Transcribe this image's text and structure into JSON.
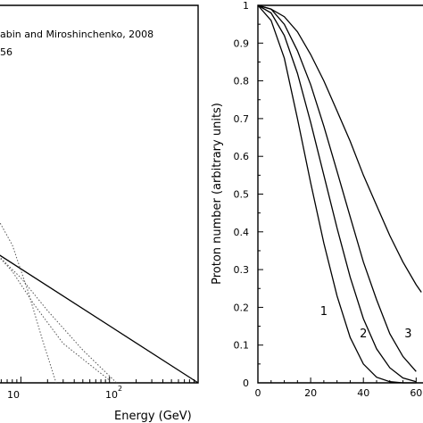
{
  "chart_data": [
    {
      "type": "line",
      "title": "",
      "legend": [
        "abin and Miroshinchenko, 2008",
        "56"
      ],
      "xlabel": "Energy (GeV)",
      "ylabel": "",
      "x_scale": "log",
      "xtick_labels": [
        "10",
        "10",
        "2"
      ],
      "series": [
        {
          "style": "solid",
          "x": [
            5,
            1000
          ],
          "y": [
            1.0,
            0.0
          ]
        },
        {
          "style": "dotted",
          "x": [
            5,
            8,
            14,
            30,
            100
          ],
          "y": [
            1.0,
            0.85,
            0.6,
            0.3,
            0.02
          ]
        },
        {
          "style": "dotted",
          "x": [
            5,
            10,
            20,
            50,
            120
          ],
          "y": [
            1.0,
            0.8,
            0.55,
            0.25,
            0.0
          ]
        },
        {
          "style": "dotted",
          "x": [
            5,
            8,
            12,
            18,
            25
          ],
          "y": [
            1.3,
            1.05,
            0.7,
            0.3,
            0.0
          ]
        }
      ]
    },
    {
      "type": "line",
      "title": "",
      "xlabel": "",
      "ylabel": "Proton number (arbitrary units)",
      "xlim": [
        0,
        62
      ],
      "ylim": [
        0,
        1
      ],
      "xticks": [
        0,
        20,
        40,
        60
      ],
      "xtick_labels": [
        "0",
        "20",
        "40",
        "60"
      ],
      "yticks": [
        0,
        0.1,
        0.2,
        0.3,
        0.4,
        0.5,
        0.6,
        0.7,
        0.8,
        0.9,
        1
      ],
      "ytick_labels": [
        "0",
        "0.1",
        "0.2",
        "0.3",
        "0.4",
        "0.5",
        "0.6",
        "0.7",
        "0.8",
        "0.9",
        "1"
      ],
      "grid": false,
      "series": [
        {
          "name": "1",
          "x": [
            0,
            5,
            10,
            15,
            20,
            25,
            30,
            35,
            40,
            45,
            50,
            55,
            60
          ],
          "y": [
            1.0,
            0.96,
            0.86,
            0.7,
            0.53,
            0.37,
            0.23,
            0.12,
            0.05,
            0.015,
            0.003,
            0.0,
            0.0
          ]
        },
        {
          "name": "2",
          "x": [
            0,
            5,
            10,
            15,
            20,
            25,
            30,
            35,
            40,
            45,
            50,
            55,
            60
          ],
          "y": [
            1.0,
            0.98,
            0.92,
            0.82,
            0.69,
            0.55,
            0.41,
            0.28,
            0.17,
            0.09,
            0.04,
            0.013,
            0.003
          ]
        },
        {
          "name": "3",
          "x": [
            0,
            5,
            10,
            15,
            20,
            25,
            30,
            35,
            40,
            45,
            50,
            55,
            60
          ],
          "y": [
            1.0,
            0.99,
            0.95,
            0.88,
            0.79,
            0.68,
            0.56,
            0.44,
            0.32,
            0.22,
            0.13,
            0.07,
            0.03
          ]
        },
        {
          "name": "",
          "x": [
            0,
            5,
            10,
            15,
            20,
            25,
            30,
            35,
            40,
            45,
            50,
            55,
            60,
            62
          ],
          "y": [
            1.0,
            0.99,
            0.97,
            0.93,
            0.87,
            0.8,
            0.72,
            0.64,
            0.55,
            0.47,
            0.39,
            0.32,
            0.26,
            0.24
          ]
        }
      ],
      "curve_labels": [
        {
          "text": "1",
          "x": 25,
          "y": 0.18
        },
        {
          "text": "2",
          "x": 40,
          "y": 0.12
        },
        {
          "text": "3",
          "x": 57,
          "y": 0.12
        }
      ]
    }
  ]
}
